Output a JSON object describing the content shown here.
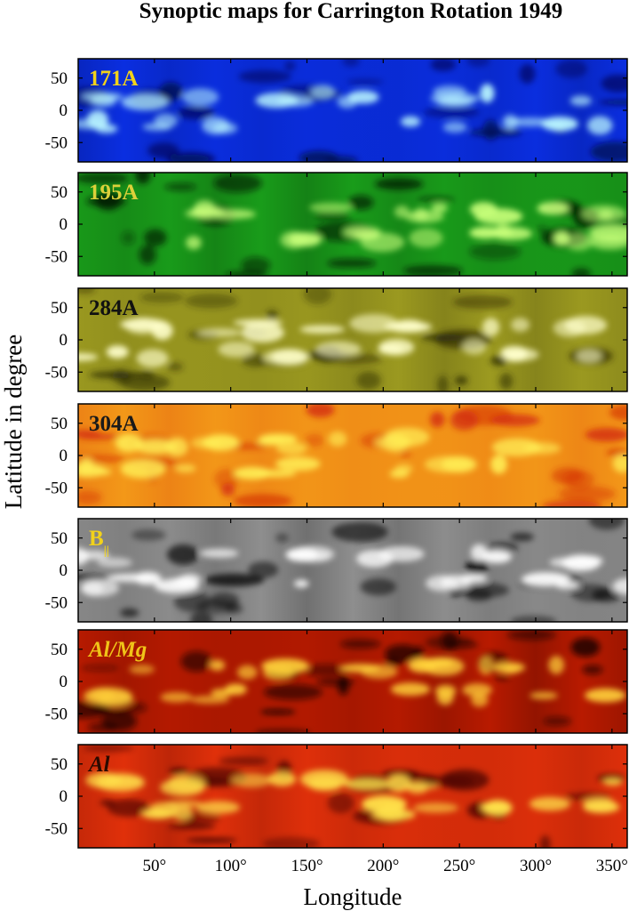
{
  "chart_data": {
    "type": "heatmap",
    "title": "Synoptic maps for Carrington Rotation 1949",
    "xlabel": "Longitude",
    "ylabel": "Latitude in degree",
    "xlim": [
      0,
      360
    ],
    "ylim": [
      -80,
      80
    ],
    "x_ticks": [
      50,
      100,
      150,
      200,
      250,
      300,
      350
    ],
    "x_tick_labels": [
      "50°",
      "100°",
      "150°",
      "200°",
      "250°",
      "300°",
      "350°"
    ],
    "y_ticks": [
      50,
      0,
      -50
    ],
    "y_tick_labels": [
      "50",
      "0",
      "-50"
    ],
    "panels": [
      {
        "label": "171A",
        "label_color": "#f2d21a",
        "label_style": "normal",
        "colors": {
          "dark": "#010a4e",
          "base": "#0a2ee0",
          "bright": "#b9f6ff"
        }
      },
      {
        "label": "195A",
        "label_color": "#dcd03a",
        "label_style": "normal",
        "colors": {
          "dark": "#031803",
          "base": "#199c1a",
          "bright": "#c8ff7a"
        }
      },
      {
        "label": "284A",
        "label_color": "#111111",
        "label_style": "normal",
        "colors": {
          "dark": "#2a2808",
          "base": "#9c9a20",
          "bright": "#ffffcc"
        }
      },
      {
        "label": "304A",
        "label_color": "#1a1a1a",
        "label_style": "normal",
        "colors": {
          "dark": "#d22a0a",
          "base": "#f39818",
          "bright": "#ffee55"
        }
      },
      {
        "label": "B",
        "label_sub": "||",
        "label_color": "#f2d21a",
        "label_style": "normal",
        "colors": {
          "dark": "#000000",
          "base": "#8e8e8e",
          "bright": "#ffffff"
        }
      },
      {
        "label": "Al/Mg",
        "label_color": "#f0c418",
        "label_style": "italic",
        "colors": {
          "dark": "#100000",
          "base": "#b81a00",
          "bright": "#ffd23a"
        }
      },
      {
        "label": "Al",
        "label_color": "#2a0a00",
        "label_style": "italic",
        "colors": {
          "dark": "#3a0000",
          "base": "#e0300a",
          "bright": "#ffe24a"
        }
      }
    ]
  }
}
